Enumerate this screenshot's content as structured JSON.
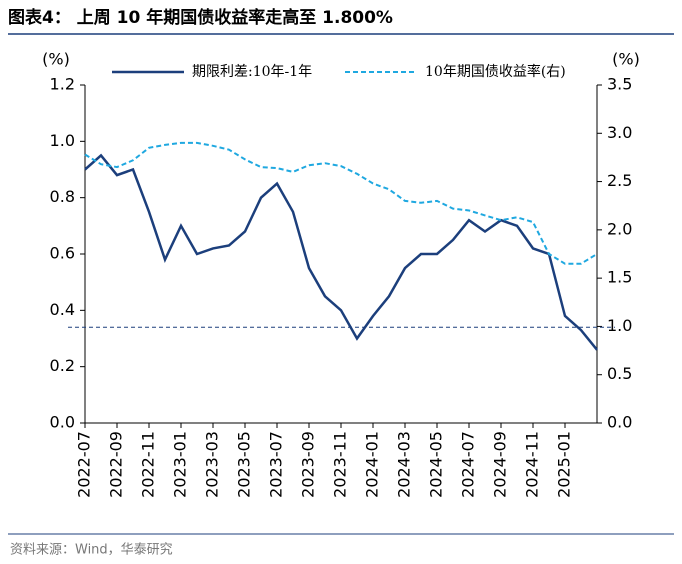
{
  "chart_data": {
    "type": "line",
    "title": "图表4：  上周 10 年期国债收益率走高至 1.800%",
    "source": "资料来源：Wind，华泰研究",
    "y_label": "(%)",
    "y2_label": "(%)",
    "categories": [
      "2022-07",
      null,
      "2022-09",
      null,
      "2022-11",
      null,
      "2023-01",
      null,
      "2023-03",
      null,
      "2023-05",
      null,
      "2023-07",
      null,
      "2023-09",
      null,
      "2023-11",
      null,
      "2024-01",
      null,
      "2024-03",
      null,
      "2024-05",
      null,
      "2024-07",
      null,
      "2024-09",
      null,
      "2024-11",
      null,
      "2025-01",
      null,
      null
    ],
    "series": [
      {
        "name": "期限利差:10年-1年",
        "color": "#1c3f7c",
        "dash": false,
        "values": [
          0.9,
          0.95,
          0.88,
          0.9,
          0.75,
          0.58,
          0.7,
          0.6,
          0.62,
          0.63,
          0.68,
          0.8,
          0.85,
          0.75,
          0.55,
          0.45,
          0.4,
          0.3,
          0.38,
          0.45,
          0.55,
          0.6,
          0.6,
          0.65,
          0.72,
          0.68,
          0.72,
          0.7,
          0.62,
          0.6,
          0.38,
          0.33,
          0.26
        ]
      },
      {
        "name": "10年期国债收益率(右)",
        "color": "#1fa8e0",
        "dash": true,
        "axis": "y2",
        "values": [
          2.78,
          2.68,
          2.65,
          2.72,
          2.85,
          2.88,
          2.9,
          2.9,
          2.87,
          2.83,
          2.73,
          2.65,
          2.64,
          2.6,
          2.67,
          2.69,
          2.66,
          2.58,
          2.48,
          2.42,
          2.3,
          2.28,
          2.3,
          2.22,
          2.2,
          2.15,
          2.1,
          2.13,
          2.08,
          1.75,
          1.65,
          1.65,
          1.75
        ]
      }
    ],
    "reference_line": {
      "value": 0.34,
      "color": "#1c3f7c"
    },
    "ylim": [
      0,
      1.2
    ],
    "yticks": [
      {
        "value": 0,
        "label": "0.0"
      },
      {
        "value": 0.2,
        "label": "0.2"
      },
      {
        "value": 0.4,
        "label": "0.4"
      },
      {
        "value": 0.6,
        "label": "0.6"
      },
      {
        "value": 0.8,
        "label": "0.8"
      },
      {
        "value": 1.0,
        "label": "1.0"
      },
      {
        "value": 1.2,
        "label": "1.2"
      }
    ],
    "y2lim": [
      0,
      3.5
    ],
    "y2ticks": [
      {
        "value": 0,
        "label": "0.0"
      },
      {
        "value": 0.5,
        "label": "0.5"
      },
      {
        "value": 1.0,
        "label": "1.0"
      },
      {
        "value": 1.5,
        "label": "1.5"
      },
      {
        "value": 2.0,
        "label": "2.0"
      },
      {
        "value": 2.5,
        "label": "2.5"
      },
      {
        "value": 3.0,
        "label": "3.0"
      },
      {
        "value": 3.5,
        "label": "3.5"
      }
    ],
    "grid": false,
    "legend": "top"
  }
}
